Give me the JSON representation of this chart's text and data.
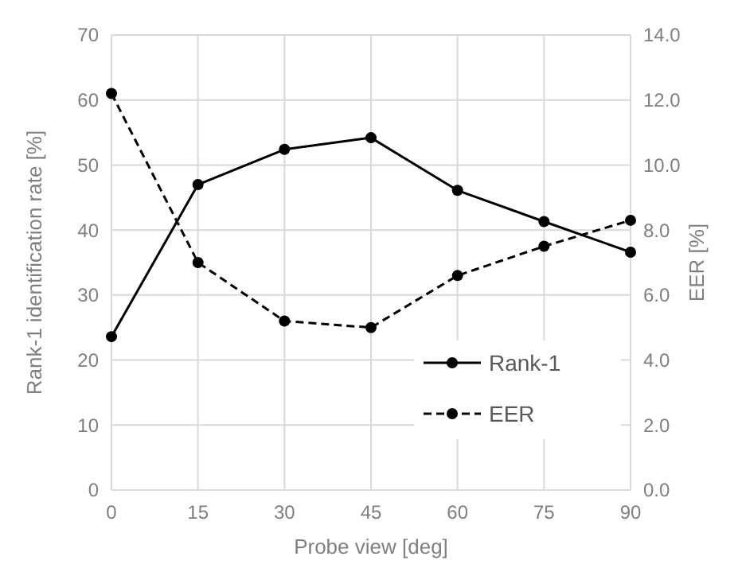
{
  "chart_data": {
    "type": "line",
    "xlabel": "Probe view [deg]",
    "ylabel": "Rank-1 identification rate [%]",
    "y2label": "EER [%]",
    "x": [
      0,
      15,
      30,
      45,
      60,
      75,
      90
    ],
    "xlim": [
      0,
      90
    ],
    "xticks": [
      0,
      15,
      30,
      45,
      60,
      75,
      90
    ],
    "ylim": [
      0,
      70
    ],
    "yticks": [
      0,
      10,
      20,
      30,
      40,
      50,
      60,
      70
    ],
    "y2lim": [
      0,
      14
    ],
    "y2ticks": [
      {
        "value": 0,
        "label": "0.0"
      },
      {
        "value": 2,
        "label": "2.0"
      },
      {
        "value": 4,
        "label": "4.0"
      },
      {
        "value": 6,
        "label": "6.0"
      },
      {
        "value": 8,
        "label": "8.0"
      },
      {
        "value": 10,
        "label": "10.0"
      },
      {
        "value": 12,
        "label": "12.0"
      },
      {
        "value": 14,
        "label": "14.0"
      }
    ],
    "grid": true,
    "legend": "bottom right",
    "marker": "circle",
    "series": [
      {
        "name": "Rank-1",
        "color": "#000000",
        "line_style": "solid",
        "values": [
          23.6,
          47.0,
          52.4,
          54.2,
          46.1,
          41.3,
          36.6
        ]
      },
      {
        "name": "EER",
        "color": "#000000",
        "line_style": "dashed",
        "axis": "y2",
        "values": [
          12.2,
          7.0,
          5.2,
          5.0,
          6.6,
          7.5,
          8.3
        ]
      }
    ]
  }
}
